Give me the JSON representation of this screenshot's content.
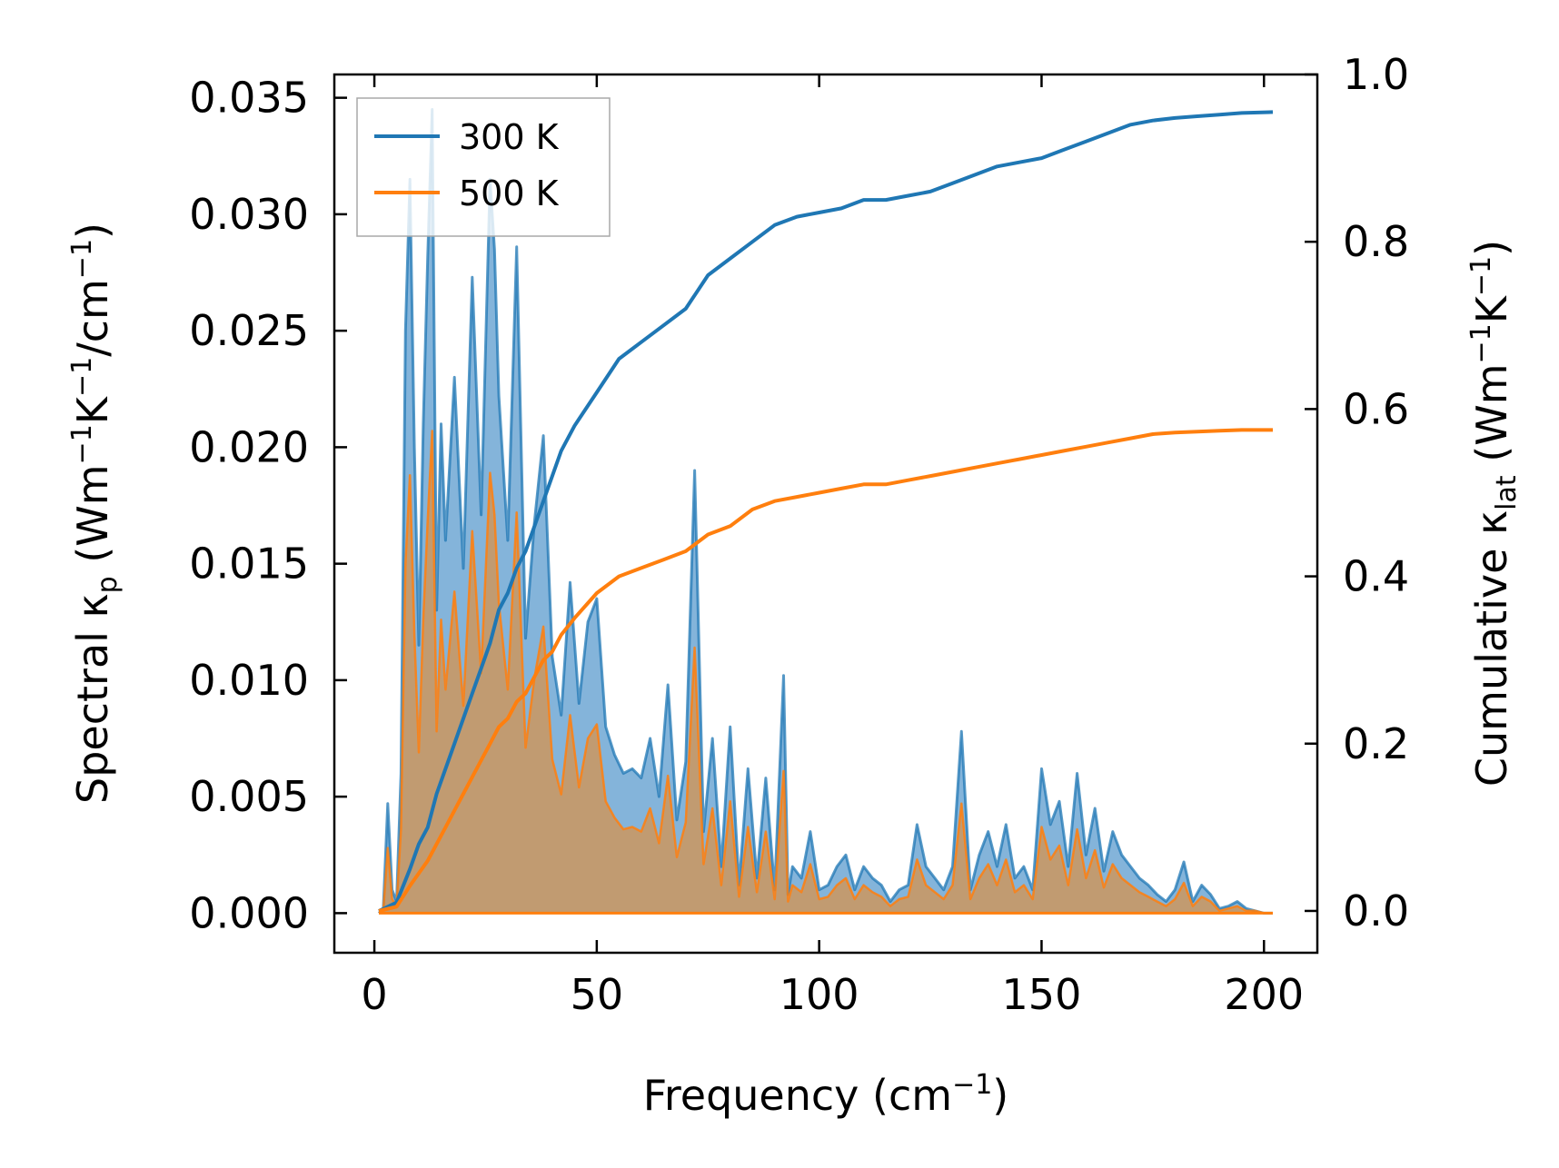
{
  "chart_data": {
    "type": "line",
    "x_label": {
      "main": "Frequency (cm",
      "sup": "−1",
      "end": ")"
    },
    "y_left_label": {
      "a": "Spectral κ",
      "a_sub": "p",
      "b": " (Wm",
      "b_sup": "−1",
      "c": "K",
      "c_sup": "−1",
      "d": "/cm",
      "d_sup": "−1",
      "e": ")"
    },
    "y_right_label": {
      "a": "Cumulative κ",
      "a_sub": "lat",
      "b": " (Wm",
      "b_sup": "−1",
      "c": "K",
      "c_sup": "−1",
      "d": ")"
    },
    "xlim": [
      -9,
      212
    ],
    "ylim_left": [
      -0.0017,
      0.036
    ],
    "ylim_right": [
      -0.05,
      1.0
    ],
    "x_ticks": [
      0,
      50,
      100,
      150,
      200
    ],
    "x_tick_labels": [
      "0",
      "50",
      "100",
      "150",
      "200"
    ],
    "y_left_ticks": [
      0.0,
      0.005,
      0.01,
      0.015,
      0.02,
      0.025,
      0.03,
      0.035
    ],
    "y_left_tick_labels": [
      "0.000",
      "0.005",
      "0.010",
      "0.015",
      "0.020",
      "0.025",
      "0.030",
      "0.035"
    ],
    "y_right_ticks": [
      0.0,
      0.2,
      0.4,
      0.6,
      0.8,
      1.0
    ],
    "y_right_tick_labels": [
      "0.0",
      "0.2",
      "0.4",
      "0.6",
      "0.8",
      "1.0"
    ],
    "legend": {
      "placement": "top-left",
      "entries": [
        "300 K",
        "500 K"
      ]
    },
    "colors": {
      "s300": "#1f77b4",
      "s500": "#ff7f0e",
      "fill300": "#6fa7d4",
      "fill500": "#c49a6c"
    },
    "spectral_x": [
      1,
      2,
      3,
      4,
      5,
      6,
      7,
      8,
      9,
      10,
      11,
      12,
      13,
      14,
      15,
      16,
      18,
      20,
      22,
      24,
      26,
      27,
      28,
      30,
      32,
      34,
      36,
      38,
      40,
      42,
      44,
      46,
      48,
      50,
      52,
      54,
      56,
      58,
      60,
      62,
      64,
      66,
      68,
      70,
      72,
      74,
      76,
      78,
      80,
      82,
      84,
      86,
      88,
      90,
      92,
      93,
      94,
      96,
      98,
      100,
      102,
      104,
      106,
      108,
      110,
      112,
      114,
      116,
      118,
      120,
      122,
      124,
      126,
      128,
      130,
      132,
      134,
      136,
      138,
      140,
      142,
      144,
      146,
      148,
      150,
      152,
      154,
      156,
      158,
      160,
      162,
      164,
      166,
      168,
      170,
      172,
      174,
      176,
      178,
      180,
      182,
      184,
      186,
      188,
      190,
      192,
      194,
      196,
      198,
      200,
      202
    ],
    "spectral_300": [
      0.0,
      0.0002,
      0.0047,
      0.001,
      0.0005,
      0.006,
      0.025,
      0.0315,
      0.02,
      0.0115,
      0.021,
      0.0282,
      0.0345,
      0.013,
      0.021,
      0.016,
      0.023,
      0.0148,
      0.0273,
      0.0171,
      0.0315,
      0.0285,
      0.0222,
      0.016,
      0.0286,
      0.0118,
      0.0168,
      0.0205,
      0.011,
      0.0085,
      0.0142,
      0.009,
      0.0125,
      0.0135,
      0.008,
      0.0068,
      0.006,
      0.0062,
      0.0058,
      0.0075,
      0.005,
      0.0098,
      0.004,
      0.0065,
      0.019,
      0.0035,
      0.0075,
      0.002,
      0.008,
      0.0012,
      0.0062,
      0.0015,
      0.0058,
      0.001,
      0.0102,
      0.0008,
      0.002,
      0.0015,
      0.0035,
      0.001,
      0.0012,
      0.002,
      0.0025,
      0.001,
      0.002,
      0.0015,
      0.0012,
      0.0005,
      0.001,
      0.0012,
      0.0038,
      0.002,
      0.0015,
      0.001,
      0.002,
      0.0078,
      0.001,
      0.0025,
      0.0035,
      0.002,
      0.0038,
      0.0015,
      0.002,
      0.001,
      0.0062,
      0.0038,
      0.0048,
      0.002,
      0.006,
      0.0025,
      0.0045,
      0.0018,
      0.0035,
      0.0025,
      0.002,
      0.0015,
      0.0012,
      0.0008,
      0.0005,
      0.001,
      0.0022,
      0.0005,
      0.0012,
      0.0008,
      0.0002,
      0.0003,
      0.0005,
      0.0002,
      0.0001,
      0.0,
      0.0
    ],
    "spectral_500": [
      0.0,
      0.0001,
      0.0028,
      0.0006,
      0.0003,
      0.0036,
      0.015,
      0.0188,
      0.012,
      0.0069,
      0.0126,
      0.0169,
      0.0207,
      0.0078,
      0.0126,
      0.0096,
      0.0138,
      0.0089,
      0.0164,
      0.0103,
      0.0189,
      0.0171,
      0.0133,
      0.0096,
      0.0172,
      0.0071,
      0.0101,
      0.0123,
      0.0066,
      0.0051,
      0.0085,
      0.0054,
      0.0075,
      0.0081,
      0.0048,
      0.0041,
      0.0036,
      0.0037,
      0.0035,
      0.0045,
      0.003,
      0.0059,
      0.0024,
      0.0039,
      0.0114,
      0.0021,
      0.0045,
      0.0012,
      0.0048,
      0.0007,
      0.0037,
      0.0009,
      0.0035,
      0.0006,
      0.0061,
      0.0005,
      0.0012,
      0.0009,
      0.0021,
      0.0006,
      0.0007,
      0.0012,
      0.0015,
      0.0006,
      0.0012,
      0.0009,
      0.0007,
      0.0003,
      0.0006,
      0.0007,
      0.0023,
      0.0012,
      0.0009,
      0.0006,
      0.0012,
      0.0047,
      0.0006,
      0.0015,
      0.0021,
      0.0012,
      0.0023,
      0.0009,
      0.0012,
      0.0006,
      0.0037,
      0.0023,
      0.0029,
      0.0012,
      0.0036,
      0.0015,
      0.0027,
      0.0011,
      0.0021,
      0.0015,
      0.0012,
      0.0009,
      0.0007,
      0.0005,
      0.0003,
      0.0006,
      0.0013,
      0.0003,
      0.0007,
      0.0005,
      0.0001,
      0.0002,
      0.0003,
      0.0001,
      0.0001,
      0.0,
      0.0
    ],
    "cumulative_x": [
      1,
      5,
      8,
      10,
      12,
      14,
      16,
      18,
      20,
      22,
      24,
      26,
      28,
      30,
      32,
      34,
      36,
      38,
      40,
      42,
      45,
      50,
      55,
      60,
      65,
      70,
      75,
      80,
      85,
      90,
      95,
      100,
      105,
      110,
      115,
      120,
      125,
      130,
      135,
      140,
      145,
      150,
      155,
      160,
      165,
      170,
      175,
      180,
      185,
      190,
      195,
      202
    ],
    "cumulative_300": [
      0.0,
      0.01,
      0.05,
      0.08,
      0.1,
      0.14,
      0.17,
      0.2,
      0.23,
      0.26,
      0.29,
      0.32,
      0.36,
      0.38,
      0.41,
      0.43,
      0.46,
      0.49,
      0.52,
      0.55,
      0.58,
      0.62,
      0.66,
      0.68,
      0.7,
      0.72,
      0.76,
      0.78,
      0.8,
      0.82,
      0.83,
      0.835,
      0.84,
      0.85,
      0.85,
      0.855,
      0.86,
      0.87,
      0.88,
      0.89,
      0.895,
      0.9,
      0.91,
      0.92,
      0.93,
      0.94,
      0.945,
      0.948,
      0.95,
      0.952,
      0.954,
      0.955
    ],
    "cumulative_500": [
      0.0,
      0.005,
      0.03,
      0.045,
      0.06,
      0.08,
      0.1,
      0.12,
      0.14,
      0.16,
      0.18,
      0.2,
      0.22,
      0.23,
      0.25,
      0.26,
      0.28,
      0.3,
      0.31,
      0.33,
      0.35,
      0.38,
      0.4,
      0.41,
      0.42,
      0.43,
      0.45,
      0.46,
      0.48,
      0.49,
      0.495,
      0.5,
      0.505,
      0.51,
      0.51,
      0.515,
      0.52,
      0.525,
      0.53,
      0.535,
      0.54,
      0.545,
      0.55,
      0.555,
      0.56,
      0.565,
      0.57,
      0.572,
      0.573,
      0.574,
      0.575,
      0.575
    ]
  }
}
